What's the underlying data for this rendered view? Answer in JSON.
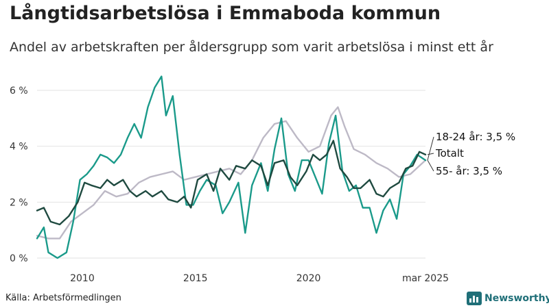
{
  "header": {
    "title": "Långtidsarbetslösa i Emmaboda kommun",
    "subtitle": "Andel av arbetskraften per åldersgrupp som varit arbetslösa i minst ett år"
  },
  "footer": {
    "source": "Källa: Arbetsförmedlingen",
    "brand": "Newsworthy",
    "brand_icon": "bar-chart-logo-icon"
  },
  "colors": {
    "young": "#1a9a8a",
    "total": "#1f4a40",
    "older": "#bdb9c6",
    "grid": "#e2e2e2",
    "brand": "#1f6f78"
  },
  "chart_data": {
    "type": "line",
    "xlim": [
      2008.0,
      2025.17
    ],
    "ylim": [
      0,
      6
    ],
    "yticks": [
      0,
      2,
      4,
      6
    ],
    "ytick_labels": [
      "0 %",
      "2 %",
      "4 %",
      "6 %"
    ],
    "xticks": [
      2010,
      2015,
      2020,
      2025.17
    ],
    "xtick_labels": [
      "2010",
      "2015",
      "2020",
      "mar 2025"
    ],
    "grid": true,
    "series": [
      {
        "key": "young",
        "name": "18-24 år",
        "end_label": "18-24 år: 3,5 %",
        "x": [
          2008.0,
          2008.3,
          2008.5,
          2008.9,
          2009.3,
          2009.6,
          2009.9,
          2010.2,
          2010.5,
          2010.8,
          2011.1,
          2011.4,
          2011.7,
          2012.0,
          2012.3,
          2012.6,
          2012.9,
          2013.2,
          2013.5,
          2013.7,
          2014.0,
          2014.3,
          2014.6,
          2014.9,
          2015.2,
          2015.5,
          2015.9,
          2016.2,
          2016.5,
          2016.9,
          2017.2,
          2017.5,
          2017.9,
          2018.2,
          2018.5,
          2018.8,
          2019.1,
          2019.4,
          2019.7,
          2020.0,
          2020.3,
          2020.6,
          2020.9,
          2021.2,
          2021.5,
          2021.8,
          2022.1,
          2022.4,
          2022.7,
          2023.0,
          2023.3,
          2023.6,
          2023.9,
          2024.2,
          2024.5,
          2024.8,
          2025.17
        ],
        "values": [
          0.7,
          1.1,
          0.2,
          0.0,
          0.2,
          1.3,
          2.8,
          3.0,
          3.3,
          3.7,
          3.6,
          3.4,
          3.7,
          4.3,
          4.8,
          4.3,
          5.4,
          6.1,
          6.5,
          5.1,
          5.8,
          3.7,
          1.9,
          1.9,
          2.4,
          2.8,
          2.6,
          1.6,
          2.0,
          2.7,
          0.9,
          2.6,
          3.4,
          2.4,
          3.9,
          5.0,
          3.0,
          2.4,
          3.5,
          3.5,
          2.9,
          2.3,
          4.1,
          5.1,
          3.1,
          2.4,
          2.6,
          1.8,
          1.8,
          0.9,
          1.7,
          2.1,
          1.4,
          3.0,
          3.3,
          3.7,
          3.5
        ]
      },
      {
        "key": "total",
        "name": "Totalt",
        "end_label": "Totalt",
        "x": [
          2008.0,
          2008.3,
          2008.6,
          2009.0,
          2009.4,
          2009.8,
          2010.1,
          2010.4,
          2010.8,
          2011.1,
          2011.4,
          2011.8,
          2012.1,
          2012.4,
          2012.8,
          2013.1,
          2013.5,
          2013.8,
          2014.2,
          2014.5,
          2014.8,
          2015.1,
          2015.5,
          2015.8,
          2016.1,
          2016.5,
          2016.8,
          2017.2,
          2017.5,
          2017.9,
          2018.2,
          2018.5,
          2018.9,
          2019.2,
          2019.5,
          2019.9,
          2020.2,
          2020.5,
          2020.8,
          2021.1,
          2021.4,
          2021.7,
          2022.0,
          2022.3,
          2022.7,
          2023.0,
          2023.3,
          2023.6,
          2024.0,
          2024.3,
          2024.6,
          2024.9,
          2025.17
        ],
        "values": [
          1.7,
          1.8,
          1.3,
          1.2,
          1.5,
          2.0,
          2.7,
          2.6,
          2.5,
          2.8,
          2.6,
          2.8,
          2.4,
          2.2,
          2.4,
          2.2,
          2.4,
          2.1,
          2.0,
          2.2,
          1.8,
          2.8,
          3.0,
          2.4,
          3.2,
          2.8,
          3.3,
          3.2,
          3.5,
          3.3,
          2.6,
          3.4,
          3.5,
          2.9,
          2.6,
          3.1,
          3.7,
          3.5,
          3.7,
          4.2,
          3.2,
          2.9,
          2.5,
          2.5,
          2.8,
          2.3,
          2.2,
          2.5,
          2.7,
          3.2,
          3.3,
          3.8,
          3.7
        ]
      },
      {
        "key": "older",
        "name": "55- år",
        "end_label": "55- år: 3,5 %",
        "x": [
          2008.0,
          2008.5,
          2009.0,
          2009.5,
          2010.0,
          2010.5,
          2011.0,
          2011.5,
          2012.0,
          2012.5,
          2013.0,
          2013.5,
          2014.0,
          2014.5,
          2015.0,
          2015.5,
          2016.0,
          2016.5,
          2017.0,
          2017.5,
          2018.0,
          2018.5,
          2019.0,
          2019.5,
          2020.0,
          2020.5,
          2021.0,
          2021.3,
          2021.6,
          2022.0,
          2022.5,
          2023.0,
          2023.5,
          2024.0,
          2024.5,
          2025.17
        ],
        "values": [
          0.8,
          0.7,
          0.7,
          1.3,
          1.6,
          1.9,
          2.4,
          2.2,
          2.3,
          2.7,
          2.9,
          3.0,
          3.1,
          2.8,
          2.9,
          3.0,
          3.1,
          3.2,
          3.0,
          3.5,
          4.3,
          4.8,
          4.9,
          4.3,
          3.8,
          4.0,
          5.1,
          5.4,
          4.7,
          3.9,
          3.7,
          3.4,
          3.2,
          2.9,
          3.0,
          3.5
        ]
      }
    ]
  }
}
